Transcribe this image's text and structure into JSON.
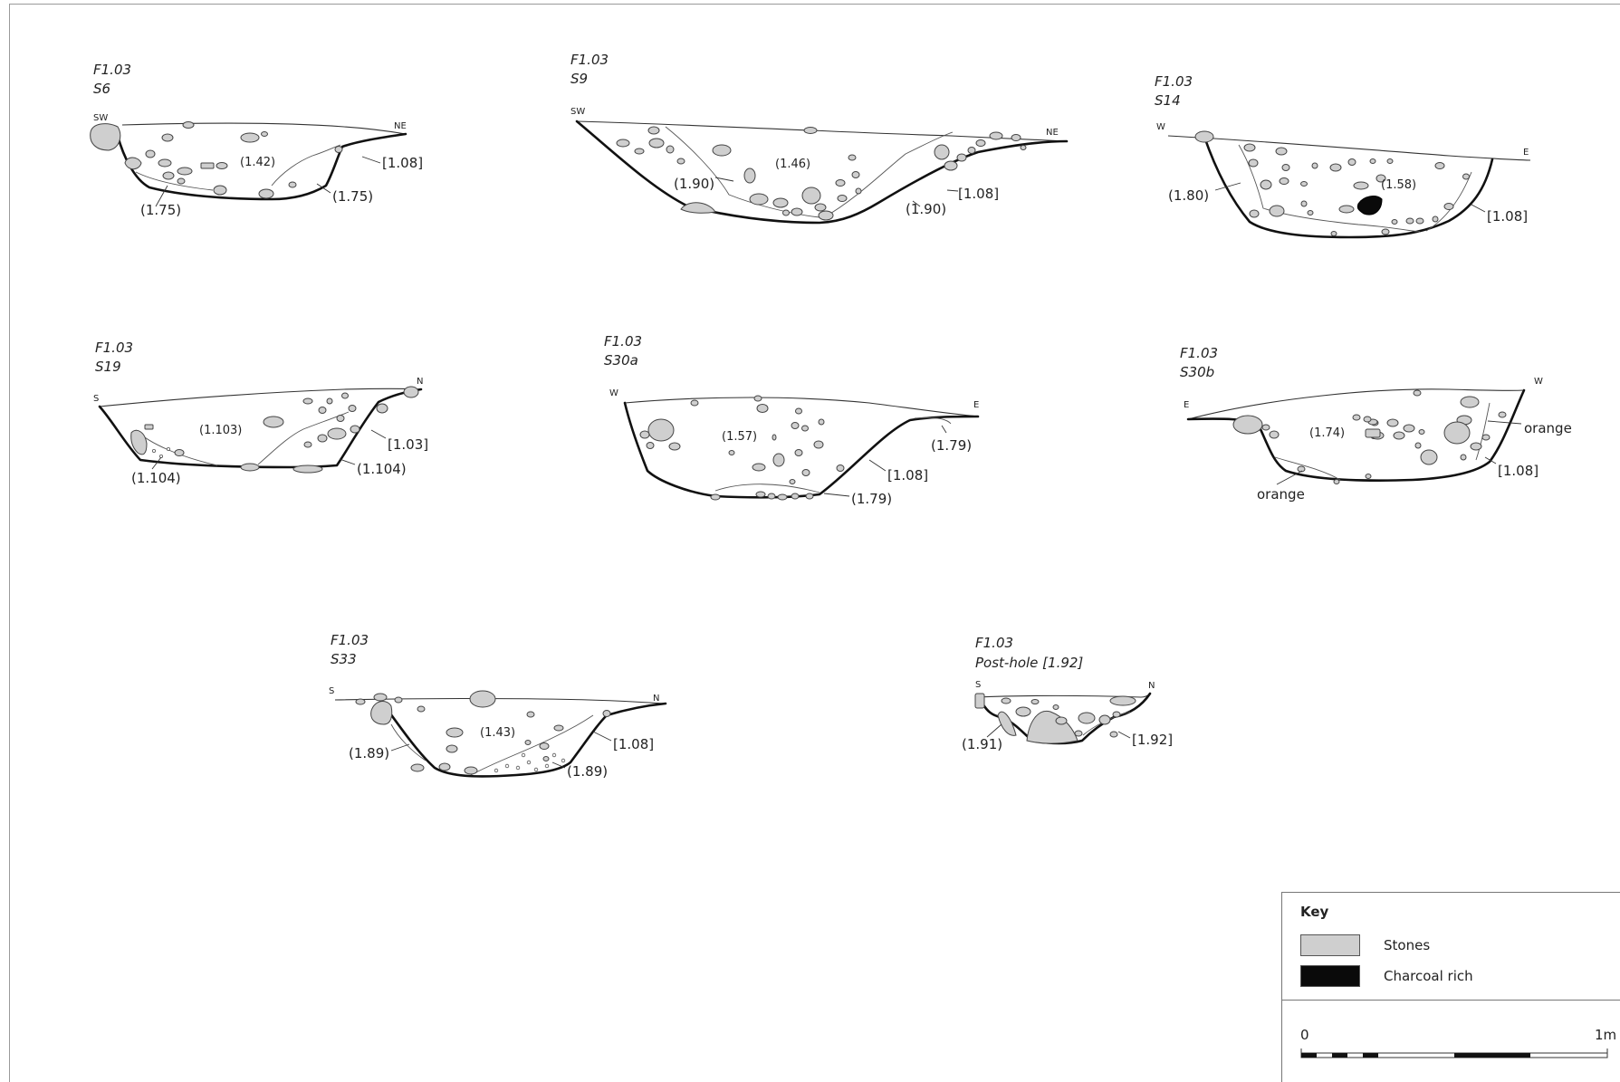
{
  "sections": [
    {
      "project": "F1.03",
      "name": "S6",
      "orient_left": "SW",
      "orient_right": "NE",
      "labels": [
        "(1.42)",
        "[1.08]",
        "(1.75)",
        "(1.75)"
      ]
    },
    {
      "project": "F1.03",
      "name": "S9",
      "orient_left": "SW",
      "orient_right": "NE",
      "labels": [
        "(1.46)",
        "(1.90)",
        "[1.08]",
        "(1.90)"
      ]
    },
    {
      "project": "F1.03",
      "name": "S14",
      "orient_left": "W",
      "orient_right": "E",
      "labels": [
        "(1.58)",
        "(1.80)",
        "[1.08]"
      ]
    },
    {
      "project": "F1.03",
      "name": "S19",
      "orient_left": "S",
      "orient_right": "N",
      "labels": [
        "(1.103)",
        "[1.03]",
        "(1.104)",
        "(1.104)"
      ]
    },
    {
      "project": "F1.03",
      "name": "S30a",
      "orient_left": "W",
      "orient_right": "E",
      "labels": [
        "(1.57)",
        "(1.79)",
        "[1.08]",
        "(1.79)"
      ]
    },
    {
      "project": "F1.03",
      "name": "S30b",
      "orient_left": "E",
      "orient_right": "W",
      "labels": [
        "(1.74)",
        "orange",
        "[1.08]",
        "orange"
      ]
    },
    {
      "project": "F1.03",
      "name": "S33",
      "orient_left": "S",
      "orient_right": "N",
      "labels": [
        "(1.43)",
        "(1.89)",
        "[1.08]",
        "(1.89)"
      ]
    },
    {
      "project": "F1.03",
      "name": "Post-hole [1.92]",
      "orient_left": "S",
      "orient_right": "N",
      "labels": [
        "(1.91)",
        "[1.92]"
      ]
    }
  ],
  "key": {
    "title": "Key",
    "items": [
      {
        "label": "Stones",
        "color": "#cfcfcf"
      },
      {
        "label": "Charcoal rich",
        "color": "#0a0a0a"
      }
    ],
    "scale_start": "0",
    "scale_end": "1m"
  }
}
